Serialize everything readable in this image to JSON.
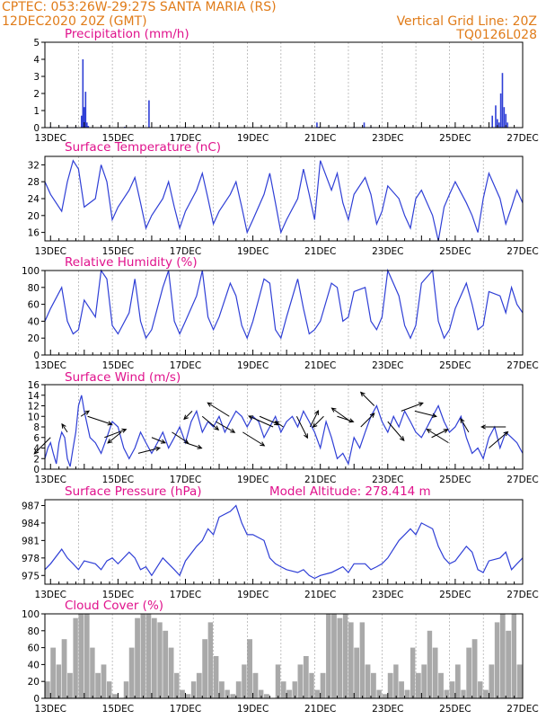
{
  "header": {
    "line1_left": "CPTEC:   053:26W-29:27S   SANTA MARIA (RS)",
    "line2_left": "12DEC2020  20Z (GMT)",
    "line1_right": "Vertical Grid Line: 20Z",
    "line2_right": "TQ0126L028"
  },
  "colors": {
    "header": "#e07b18",
    "title": "#e0128c",
    "line": "#2f3fd6",
    "bar": "#2f3fd6",
    "cloud": "#a9a9a9"
  },
  "chart_data": [
    {
      "type": "bar",
      "title": "Precipitation  (mm/h)",
      "xlim": [
        12.833,
        27.0
      ],
      "ylim": [
        0,
        5
      ],
      "yticks": [
        0,
        1,
        2,
        3,
        4,
        5
      ],
      "xticks": [
        "13DEC",
        "15DEC",
        "17DEC",
        "19DEC",
        "21DEC",
        "23DEC",
        "25DEC",
        "27DEC"
      ],
      "x": [
        13.0,
        13.5,
        13.75,
        13.92,
        13.96,
        14.0,
        14.04,
        14.08,
        14.12,
        14.5,
        15.2,
        15.92,
        17.0,
        18.0,
        20.9,
        20.96,
        21.5,
        22.0,
        22.3,
        22.5,
        26.1,
        26.2,
        26.25,
        26.3,
        26.35,
        26.4,
        26.45,
        26.5,
        26.55
      ],
      "values": [
        0.05,
        0.05,
        0.05,
        0.7,
        4.0,
        1.2,
        2.1,
        0.3,
        0.1,
        0.05,
        0.05,
        1.6,
        0.05,
        0.05,
        0.3,
        0.05,
        0.05,
        0.05,
        0.3,
        0.05,
        0.7,
        1.3,
        0.5,
        0.3,
        2.0,
        3.2,
        1.2,
        0.8,
        0.3
      ]
    },
    {
      "type": "line",
      "title": "Surface Temperature (nC)",
      "xlim": [
        12.833,
        27.0
      ],
      "ylim": [
        14,
        34
      ],
      "yticks": [
        16,
        20,
        24,
        28,
        32
      ],
      "xticks": [
        "13DEC",
        "15DEC",
        "17DEC",
        "19DEC",
        "21DEC",
        "23DEC",
        "25DEC",
        "27DEC"
      ],
      "x": [
        12.833,
        13.0,
        13.33,
        13.5,
        13.67,
        13.83,
        14.0,
        14.33,
        14.5,
        14.67,
        14.83,
        15.0,
        15.33,
        15.5,
        15.67,
        15.83,
        16.0,
        16.33,
        16.5,
        16.67,
        16.83,
        17.0,
        17.33,
        17.5,
        17.67,
        17.83,
        18.0,
        18.33,
        18.5,
        18.67,
        18.83,
        19.0,
        19.33,
        19.5,
        19.67,
        19.83,
        20.0,
        20.33,
        20.5,
        20.67,
        20.83,
        21.0,
        21.33,
        21.5,
        21.67,
        21.83,
        22.0,
        22.33,
        22.5,
        22.67,
        22.83,
        23.0,
        23.33,
        23.5,
        23.67,
        23.83,
        24.0,
        24.33,
        24.5,
        24.67,
        24.83,
        25.0,
        25.33,
        25.5,
        25.67,
        25.83,
        26.0,
        26.33,
        26.5,
        26.67,
        26.83,
        27.0
      ],
      "values": [
        28,
        25,
        21,
        28,
        33,
        31,
        22,
        24,
        32,
        28,
        19,
        22,
        26,
        29,
        23,
        17,
        20,
        24,
        28,
        22,
        17,
        21,
        26,
        30,
        24,
        18,
        21,
        25,
        28,
        22,
        16,
        19,
        25,
        30,
        23,
        16,
        19,
        24,
        31,
        25,
        19,
        33,
        26,
        30,
        23,
        19,
        25,
        29,
        25,
        18,
        21,
        27,
        24,
        20,
        17,
        24,
        26,
        20,
        14,
        22,
        25,
        28,
        23,
        20,
        16,
        24,
        30,
        24,
        18,
        22,
        26,
        23
      ]
    },
    {
      "type": "line",
      "title": "Relative Humidity (%)",
      "xlim": [
        12.833,
        27.0
      ],
      "ylim": [
        0,
        100
      ],
      "yticks": [
        0,
        20,
        40,
        60,
        80,
        100
      ],
      "xticks": [
        "13DEC",
        "15DEC",
        "17DEC",
        "19DEC",
        "21DEC",
        "23DEC",
        "25DEC",
        "27DEC"
      ],
      "x": [
        12.833,
        13.0,
        13.33,
        13.5,
        13.67,
        13.83,
        14.0,
        14.33,
        14.5,
        14.67,
        14.83,
        15.0,
        15.33,
        15.5,
        15.67,
        15.83,
        16.0,
        16.33,
        16.5,
        16.67,
        16.83,
        17.0,
        17.33,
        17.5,
        17.67,
        17.83,
        18.0,
        18.33,
        18.5,
        18.67,
        18.83,
        19.0,
        19.33,
        19.5,
        19.67,
        19.83,
        20.0,
        20.33,
        20.5,
        20.67,
        20.83,
        21.0,
        21.33,
        21.5,
        21.67,
        21.83,
        22.0,
        22.33,
        22.5,
        22.67,
        22.83,
        23.0,
        23.33,
        23.5,
        23.67,
        23.83,
        24.0,
        24.33,
        24.5,
        24.67,
        24.83,
        25.0,
        25.33,
        25.5,
        25.67,
        25.83,
        26.0,
        26.33,
        26.5,
        26.67,
        26.83,
        27.0
      ],
      "values": [
        40,
        55,
        80,
        40,
        25,
        30,
        65,
        45,
        100,
        90,
        35,
        25,
        50,
        90,
        40,
        20,
        30,
        80,
        100,
        40,
        25,
        40,
        70,
        100,
        45,
        30,
        45,
        85,
        70,
        35,
        20,
        40,
        90,
        85,
        30,
        20,
        45,
        90,
        55,
        25,
        30,
        40,
        85,
        80,
        40,
        45,
        75,
        80,
        40,
        30,
        45,
        100,
        70,
        35,
        20,
        35,
        85,
        100,
        40,
        20,
        30,
        55,
        85,
        60,
        30,
        35,
        75,
        70,
        50,
        80,
        60,
        50
      ]
    },
    {
      "type": "line",
      "title": "Surface Wind  (m/s)",
      "xlim": [
        12.833,
        27.0
      ],
      "ylim": [
        0,
        16
      ],
      "yticks": [
        0,
        2,
        4,
        6,
        8,
        10,
        12,
        14,
        16
      ],
      "xticks": [
        "13DEC",
        "15DEC",
        "17DEC",
        "19DEC",
        "21DEC",
        "23DEC",
        "25DEC",
        "27DEC"
      ],
      "x": [
        12.833,
        12.92,
        13.0,
        13.08,
        13.17,
        13.25,
        13.33,
        13.42,
        13.5,
        13.58,
        13.67,
        13.75,
        13.83,
        13.92,
        14.0,
        14.17,
        14.33,
        14.5,
        14.67,
        14.83,
        15.0,
        15.17,
        15.33,
        15.5,
        15.67,
        15.83,
        16.0,
        16.17,
        16.33,
        16.5,
        16.67,
        16.83,
        17.0,
        17.17,
        17.33,
        17.5,
        17.67,
        17.83,
        18.0,
        18.17,
        18.33,
        18.5,
        18.67,
        18.83,
        19.0,
        19.17,
        19.33,
        19.5,
        19.67,
        19.83,
        20.0,
        20.17,
        20.33,
        20.5,
        20.67,
        20.83,
        21.0,
        21.17,
        21.33,
        21.5,
        21.67,
        21.83,
        22.0,
        22.17,
        22.33,
        22.5,
        22.67,
        22.83,
        23.0,
        23.17,
        23.33,
        23.5,
        23.67,
        23.83,
        24.0,
        24.17,
        24.33,
        24.5,
        24.67,
        24.83,
        25.0,
        25.17,
        25.33,
        25.5,
        25.67,
        25.83,
        26.0,
        26.17,
        26.33,
        26.5,
        26.67,
        26.83,
        27.0
      ],
      "values": [
        2,
        4,
        5,
        3,
        1,
        5,
        7,
        6,
        2,
        0.5,
        4,
        7,
        12,
        14,
        11,
        6,
        5,
        3,
        6,
        9,
        8,
        4,
        2,
        4,
        7,
        5,
        3,
        5,
        7,
        4,
        6,
        8,
        5,
        9,
        11,
        7,
        9,
        8,
        10,
        7,
        9,
        11,
        10,
        8,
        10,
        9,
        6,
        8,
        10,
        7,
        9,
        10,
        8,
        11,
        9,
        7,
        4,
        9,
        6,
        2,
        3,
        1,
        6,
        4,
        7,
        10,
        12,
        9,
        7,
        10,
        8,
        11,
        9,
        7,
        6,
        8,
        10,
        12,
        9,
        7,
        8,
        10,
        6,
        3,
        4,
        2,
        6,
        8,
        4,
        7,
        6,
        5,
        3
      ]
    },
    {
      "type": "line",
      "title": "Surface Pressure (hPa)",
      "annotation": "Model Altitude: 278.414  m",
      "xlim": [
        12.833,
        27.0
      ],
      "ylim": [
        973.5,
        988
      ],
      "yticks": [
        975,
        978,
        981,
        984,
        987
      ],
      "xticks": [
        "13DEC",
        "15DEC",
        "17DEC",
        "19DEC",
        "21DEC",
        "23DEC",
        "25DEC",
        "27DEC"
      ],
      "x": [
        12.833,
        13.0,
        13.33,
        13.5,
        13.67,
        13.83,
        14.0,
        14.33,
        14.5,
        14.67,
        14.83,
        15.0,
        15.33,
        15.5,
        15.67,
        15.83,
        16.0,
        16.33,
        16.5,
        16.67,
        16.83,
        17.0,
        17.33,
        17.5,
        17.67,
        17.83,
        18.0,
        18.33,
        18.5,
        18.67,
        18.83,
        19.0,
        19.33,
        19.5,
        19.67,
        19.83,
        20.0,
        20.33,
        20.5,
        20.67,
        20.83,
        21.0,
        21.33,
        21.5,
        21.67,
        21.83,
        22.0,
        22.33,
        22.5,
        22.67,
        22.83,
        23.0,
        23.33,
        23.5,
        23.67,
        23.83,
        24.0,
        24.33,
        24.5,
        24.67,
        24.83,
        25.0,
        25.33,
        25.5,
        25.67,
        25.83,
        26.0,
        26.33,
        26.5,
        26.67,
        26.83,
        27.0
      ],
      "values": [
        976,
        977,
        979.5,
        978,
        977,
        976,
        977.5,
        977,
        976,
        977.5,
        978,
        977,
        979,
        978,
        976,
        976.5,
        975,
        978,
        977,
        976,
        975,
        977.5,
        980,
        981,
        983,
        982,
        985,
        986,
        987,
        984,
        982,
        982,
        981,
        978,
        977,
        976.5,
        976,
        975.5,
        976,
        975,
        974.5,
        975,
        975.5,
        976,
        976.5,
        975.5,
        977,
        977,
        976,
        976.5,
        977,
        978,
        981,
        982,
        983,
        982,
        984,
        983,
        980,
        978,
        977,
        977.5,
        980,
        979,
        976,
        975.5,
        977.5,
        978,
        979,
        976,
        977,
        978
      ]
    },
    {
      "type": "bar",
      "title": "Cloud Cover (%)",
      "xlim": [
        12.833,
        27.0
      ],
      "ylim": [
        0,
        100
      ],
      "yticks": [
        0,
        20,
        40,
        60,
        80,
        100
      ],
      "xticks": [
        "13DEC",
        "15DEC",
        "17DEC",
        "19DEC",
        "21DEC",
        "23DEC",
        "25DEC",
        "27DEC"
      ],
      "x": [
        12.833,
        13.0,
        13.17,
        13.33,
        13.5,
        13.67,
        13.83,
        14.0,
        14.17,
        14.33,
        14.5,
        14.67,
        14.83,
        15.0,
        15.17,
        15.33,
        15.5,
        15.67,
        15.83,
        16.0,
        16.17,
        16.33,
        16.5,
        16.67,
        16.83,
        17.0,
        17.17,
        17.33,
        17.5,
        17.67,
        17.83,
        18.0,
        18.17,
        18.33,
        18.5,
        18.67,
        18.83,
        19.0,
        19.17,
        19.33,
        19.5,
        19.67,
        19.83,
        20.0,
        20.17,
        20.33,
        20.5,
        20.67,
        20.83,
        21.0,
        21.17,
        21.33,
        21.5,
        21.67,
        21.83,
        22.0,
        22.17,
        22.33,
        22.5,
        22.67,
        22.83,
        23.0,
        23.17,
        23.33,
        23.5,
        23.67,
        23.83,
        24.0,
        24.17,
        24.33,
        24.5,
        24.67,
        24.83,
        25.0,
        25.17,
        25.33,
        25.5,
        25.67,
        25.83,
        26.0,
        26.17,
        26.33,
        26.5,
        26.67,
        26.83,
        27.0
      ],
      "values": [
        20,
        60,
        40,
        70,
        30,
        95,
        100,
        100,
        60,
        30,
        40,
        20,
        5,
        0,
        20,
        60,
        95,
        100,
        100,
        95,
        90,
        80,
        60,
        30,
        10,
        5,
        20,
        30,
        70,
        90,
        50,
        20,
        10,
        5,
        20,
        40,
        70,
        30,
        10,
        5,
        0,
        40,
        20,
        10,
        20,
        40,
        50,
        30,
        10,
        30,
        100,
        100,
        95,
        100,
        90,
        60,
        90,
        40,
        30,
        10,
        5,
        30,
        40,
        20,
        10,
        60,
        30,
        40,
        80,
        60,
        30,
        10,
        20,
        40,
        10,
        60,
        70,
        20,
        10,
        40,
        90,
        100,
        80,
        100,
        40,
        10
      ]
    }
  ],
  "wind_vectors": {
    "x": [
      13.0,
      13.5,
      13.9,
      14.1,
      14.6,
      15.1,
      15.6,
      16.0,
      16.6,
      17.0,
      17.2,
      17.5,
      17.9,
      18.3,
      18.7,
      19.2,
      19.6,
      19.9,
      20.3,
      20.7,
      21.1,
      21.5,
      21.9,
      22.2,
      22.6,
      23.0,
      23.4,
      23.8,
      24.3,
      24.8,
      25.4,
      26.0,
      26.5
    ],
    "y": [
      6,
      7,
      10,
      10,
      6,
      7,
      3,
      6,
      7,
      5,
      11,
      10,
      9,
      10,
      7,
      10,
      8,
      8,
      10,
      8,
      10,
      10,
      9,
      8,
      12,
      9,
      11,
      11,
      6,
      5,
      7,
      4,
      8
    ],
    "u": [
      -0.6,
      -0.2,
      0.3,
      0.9,
      0.8,
      -0.5,
      0.8,
      0.5,
      0.6,
      0.6,
      -0.3,
      0.6,
      0.7,
      -0.8,
      0.8,
      0.7,
      -0.9,
      -0.3,
      0.4,
      0.3,
      -0.4,
      0.6,
      -0.7,
      0.5,
      -0.5,
      0.6,
      0.8,
      0.8,
      0.6,
      -0.8,
      -0.3,
      0.7,
      -0.9
    ],
    "v": [
      -0.6,
      0.3,
      0.2,
      -0.3,
      0.3,
      -0.4,
      0.2,
      -0.2,
      -0.4,
      -0.2,
      -0.3,
      -0.5,
      -0.4,
      0.5,
      -0.5,
      -0.3,
      0.4,
      0.2,
      -0.8,
      0.6,
      -0.4,
      -0.2,
      0.5,
      0.5,
      0.5,
      -0.7,
      0.3,
      -0.2,
      0.3,
      0.5,
      0.5,
      0.6,
      0.0
    ]
  }
}
